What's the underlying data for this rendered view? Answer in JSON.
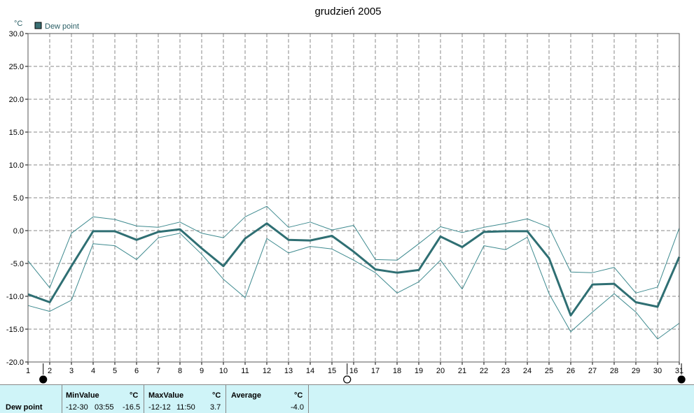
{
  "chart_data": {
    "type": "line",
    "title": "grudzień 2005",
    "ylabel": "°C",
    "ylim": [
      -20,
      30
    ],
    "ytick_labels": [
      "30.0",
      "25.0",
      "20.0",
      "15.0",
      "10.0",
      "5.0",
      "0.0",
      "-5.0",
      "-10.0",
      "-15.0",
      "-20.0"
    ],
    "categories": [
      "1",
      "2",
      "3",
      "4",
      "5",
      "6",
      "7",
      "8",
      "9",
      "10",
      "11",
      "12",
      "13",
      "14",
      "15",
      "16",
      "17",
      "18",
      "19",
      "20",
      "21",
      "22",
      "23",
      "24",
      "25",
      "26",
      "27",
      "28",
      "29",
      "30",
      "31"
    ],
    "legend": [
      "Dew point"
    ],
    "grid": true,
    "series": [
      {
        "name": "Dew point",
        "role": "average",
        "color": "#2f6f73",
        "values": [
          -9.7,
          -10.9,
          -5.4,
          -0.1,
          -0.1,
          -1.4,
          -0.2,
          0.2,
          -2.7,
          -5.4,
          -1.2,
          1.1,
          -1.4,
          -1.5,
          -0.8,
          -3.2,
          -5.9,
          -6.4,
          -6.0,
          -0.9,
          -2.5,
          -0.2,
          -0.1,
          -0.1,
          -4.2,
          -12.9,
          -8.2,
          -8.1,
          -10.9,
          -11.6,
          -4.0
        ]
      },
      {
        "name": "Dew point",
        "role": "max",
        "color": "#3e8a8f",
        "values": [
          -4.6,
          -8.7,
          -0.4,
          2.1,
          1.7,
          0.7,
          0.5,
          1.3,
          -0.4,
          -1.1,
          2.1,
          3.7,
          0.5,
          1.3,
          0.1,
          0.8,
          -4.4,
          -4.5,
          -2.0,
          0.6,
          -0.3,
          0.5,
          1.1,
          1.8,
          0.5,
          -6.3,
          -6.4,
          -5.6,
          -9.5,
          -8.6,
          0.4
        ]
      },
      {
        "name": "Dew point",
        "role": "min",
        "color": "#3e8a8f",
        "values": [
          -11.4,
          -12.3,
          -10.6,
          -2.0,
          -2.3,
          -4.4,
          -1.1,
          -0.4,
          -3.6,
          -7.4,
          -10.2,
          -1.2,
          -3.4,
          -2.4,
          -2.8,
          -4.5,
          -6.4,
          -9.5,
          -7.8,
          -4.5,
          -8.9,
          -2.3,
          -2.9,
          -1.0,
          -9.6,
          -15.4,
          -12.4,
          -9.6,
          -12.4,
          -16.5,
          -14.1
        ]
      }
    ],
    "markers": [
      {
        "type": "filled",
        "x": 1.7
      },
      {
        "type": "open",
        "x": 15.7
      },
      {
        "type": "filled",
        "x": 31.1
      }
    ]
  },
  "stats": {
    "row_label": "Dew point",
    "min": {
      "header": "MinValue",
      "unit": "°C",
      "date": "-12-30",
      "time": "03:55",
      "value": "-16.5"
    },
    "max": {
      "header": "MaxValue",
      "unit": "°C",
      "date": "-12-12",
      "time": "11:50",
      "value": "3.7"
    },
    "avg": {
      "header": "Average",
      "unit": "°C",
      "value": "-4.0"
    }
  }
}
